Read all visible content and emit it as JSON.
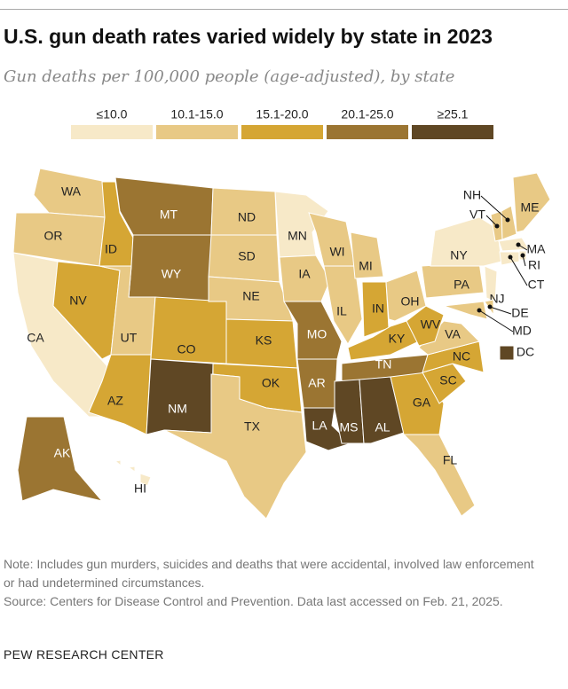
{
  "title": "U.S. gun death rates varied widely by state in 2023",
  "subtitle": "Gun deaths per 100,000 people (age-adjusted), by state",
  "legend": [
    {
      "label": "≤10.0",
      "color": "#f7e9c8"
    },
    {
      "label": "10.1-15.0",
      "color": "#e8c985"
    },
    {
      "label": "15.1-20.0",
      "color": "#d5a634"
    },
    {
      "label": "20.1-25.0",
      "color": "#9b7532"
    },
    {
      "label": "≥25.1",
      "color": "#5f4724"
    }
  ],
  "states": [
    {
      "label": "WA",
      "color": "#e8c985"
    },
    {
      "label": "OR",
      "color": "#e8c985"
    },
    {
      "label": "CA",
      "color": "#f7e9c8"
    },
    {
      "label": "NV",
      "color": "#d5a634"
    },
    {
      "label": "ID",
      "color": "#d5a634"
    },
    {
      "label": "MT",
      "color": "#9b7532"
    },
    {
      "label": "WY",
      "color": "#9b7532"
    },
    {
      "label": "UT",
      "color": "#e8c985"
    },
    {
      "label": "AZ",
      "color": "#d5a634"
    },
    {
      "label": "CO",
      "color": "#d5a634"
    },
    {
      "label": "NM",
      "color": "#5f4724"
    },
    {
      "label": "ND",
      "color": "#e8c985"
    },
    {
      "label": "SD",
      "color": "#e8c985"
    },
    {
      "label": "NE",
      "color": "#e8c985"
    },
    {
      "label": "KS",
      "color": "#d5a634"
    },
    {
      "label": "OK",
      "color": "#d5a634"
    },
    {
      "label": "TX",
      "color": "#e8c985"
    },
    {
      "label": "MN",
      "color": "#f7e9c8"
    },
    {
      "label": "IA",
      "color": "#e8c985"
    },
    {
      "label": "MO",
      "color": "#9b7532"
    },
    {
      "label": "AR",
      "color": "#9b7532"
    },
    {
      "label": "LA",
      "color": "#5f4724"
    },
    {
      "label": "WI",
      "color": "#e8c985"
    },
    {
      "label": "IL",
      "color": "#e8c985"
    },
    {
      "label": "MI",
      "color": "#e8c985"
    },
    {
      "label": "IN",
      "color": "#d5a634"
    },
    {
      "label": "OH",
      "color": "#e8c985"
    },
    {
      "label": "KY",
      "color": "#d5a634"
    },
    {
      "label": "TN",
      "color": "#9b7532"
    },
    {
      "label": "MS",
      "color": "#5f4724"
    },
    {
      "label": "AL",
      "color": "#5f4724"
    },
    {
      "label": "GA",
      "color": "#d5a634"
    },
    {
      "label": "FL",
      "color": "#e8c985"
    },
    {
      "label": "SC",
      "color": "#d5a634"
    },
    {
      "label": "NC",
      "color": "#d5a634"
    },
    {
      "label": "VA",
      "color": "#e8c985"
    },
    {
      "label": "WV",
      "color": "#d5a634"
    },
    {
      "label": "PA",
      "color": "#e8c985"
    },
    {
      "label": "NY",
      "color": "#f7e9c8"
    },
    {
      "label": "VT",
      "color": "#e8c985"
    },
    {
      "label": "NH",
      "color": "#e8c985"
    },
    {
      "label": "ME",
      "color": "#e8c985"
    },
    {
      "label": "MA",
      "color": "#f7e9c8"
    },
    {
      "label": "RI",
      "color": "#f7e9c8"
    },
    {
      "label": "CT",
      "color": "#f7e9c8"
    },
    {
      "label": "NJ",
      "color": "#f7e9c8"
    },
    {
      "label": "DE",
      "color": "#e8c985"
    },
    {
      "label": "MD",
      "color": "#e8c985"
    },
    {
      "label": "DC",
      "color": "#5f4724"
    },
    {
      "label": "AK",
      "color": "#9b7532"
    },
    {
      "label": "HI",
      "color": "#f7e9c8"
    }
  ],
  "note": "Note: Includes gun murders, suicides and deaths that were accidental, involved law enforcement or had undetermined circumstances.",
  "source": "Source: Centers for Disease Control and Prevention. Data last accessed on Feb. 21, 2025.",
  "credit": "PEW RESEARCH CENTER"
}
